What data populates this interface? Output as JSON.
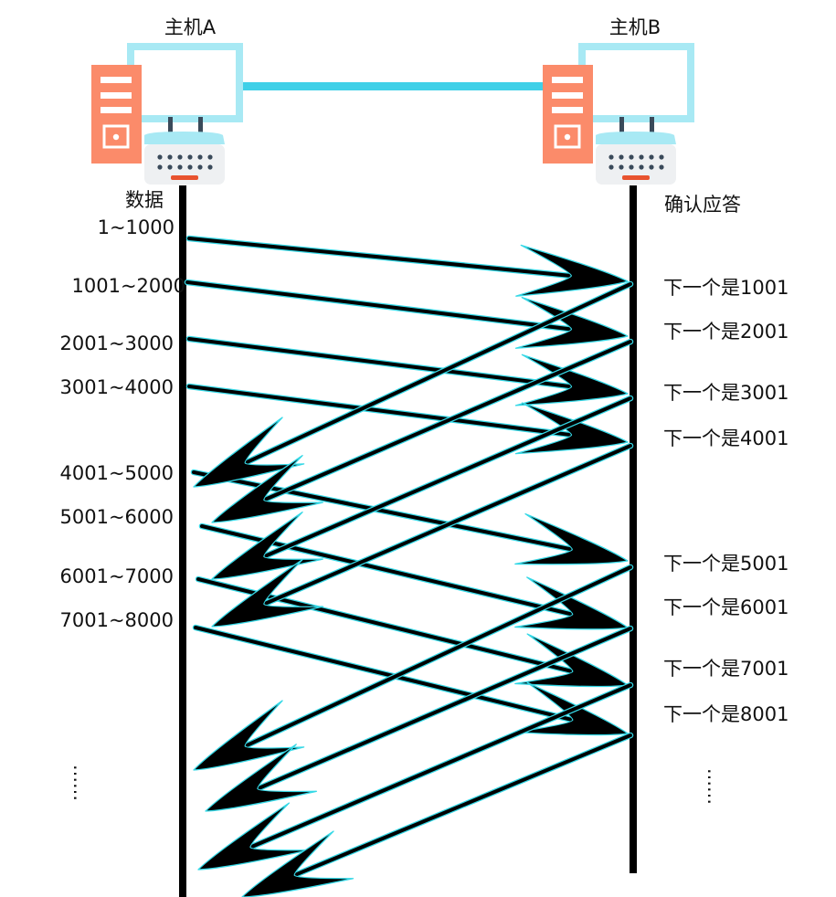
{
  "hosts": {
    "a_name": "主机A",
    "b_name": "主机B"
  },
  "left_heading": "数据",
  "right_heading": "确认应答",
  "segments": [
    "1~1000",
    "1001~2000",
    "2001~3000",
    "3001~4000",
    "4001~5000",
    "5001~6000",
    "6001~7000",
    "7001~8000"
  ],
  "acks": [
    "下一个是1001",
    "下一个是2001",
    "下一个是3001",
    "下一个是4001",
    "下一个是5001",
    "下一个是6001",
    "下一个是7001",
    "下一个是8001"
  ],
  "continuation_left": "……",
  "continuation_right": "……",
  "colors": {
    "monitor": "#a8e9f4",
    "link": "#3fd0e8",
    "tower": "#fb8b6a",
    "keyboard": "#eef0f2",
    "key": "#3a4a5a",
    "key_accent": "#e8532f",
    "line": "#000000",
    "arrow_outline": "#35d8e6"
  },
  "icons": [
    "desktop-computer-icon",
    "desktop-computer-icon"
  ]
}
